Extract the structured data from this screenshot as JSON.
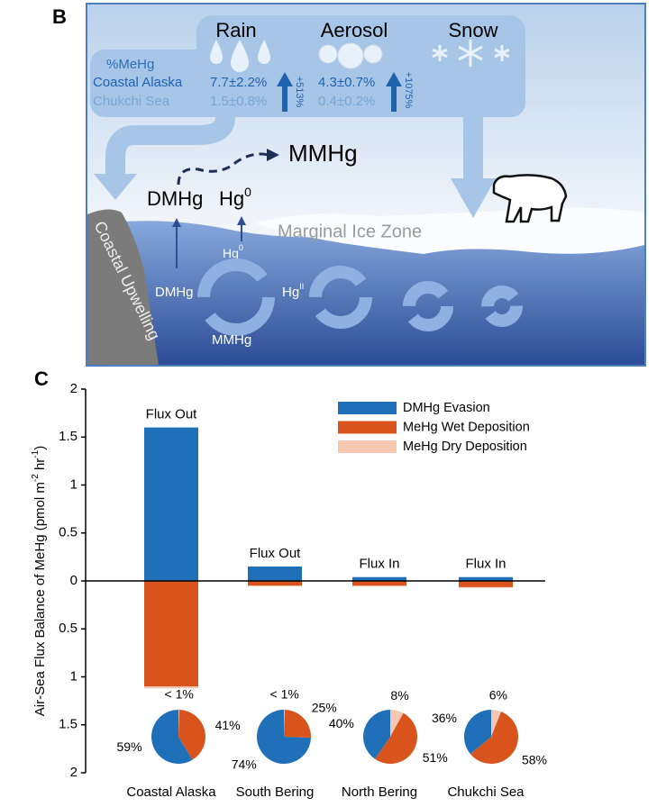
{
  "panel_b": {
    "label": "B",
    "precip": [
      "Rain",
      "Aerosol",
      "Snow"
    ],
    "mehg_title": "%MeHg",
    "regions": [
      "Coastal Alaska",
      "Chukchi Sea"
    ],
    "rain_values": [
      "7.7±2.2%",
      "1.5±0.8%"
    ],
    "rain_increase": "+513%",
    "aerosol_values": [
      "4.3±0.7%",
      "0.4±0.2%"
    ],
    "aerosol_increase": "+1075%",
    "mmhg_air": "MMHg",
    "dmhg_air": "DMHg",
    "hg0_air": {
      "base": "Hg",
      "sup": "0"
    },
    "ice_zone": "Marginal Ice Zone",
    "upwelling": "Coastal Upwelling",
    "hg0_water": {
      "base": "Hg",
      "sup": "0"
    },
    "dmhg_water": "DMHg",
    "hgii_water": {
      "base": "Hg",
      "sup": "II"
    },
    "mmhg_water": "MMHg"
  },
  "chart_data": {
    "type": "bar",
    "panel_label": "C",
    "ylabel": [
      "Air-Sea Flux Balance of MeHg (pmol m",
      "-2",
      " hr",
      "-1",
      ")"
    ],
    "categories": [
      "Coastal Alaska",
      "South Bering",
      "North Bering",
      "Chukchi Sea"
    ],
    "series": [
      {
        "name": "DMHg Evasion",
        "color": "#1f70b8",
        "values": [
          1.6,
          0.15,
          0.04,
          0.04
        ]
      },
      {
        "name": "MeHg Wet Deposition",
        "color": "#d9541d",
        "values": [
          -1.1,
          -0.05,
          -0.05,
          -0.065
        ]
      },
      {
        "name": "MeHg Dry Deposition",
        "color": "#f5c6b1",
        "values": [
          -0.02,
          -0.005,
          -0.008,
          -0.007
        ]
      }
    ],
    "annotations": [
      "Flux Out",
      "Flux Out",
      "Flux In",
      "Flux In"
    ],
    "pies": [
      {
        "values": [
          59,
          41,
          0.5
        ],
        "value_labels": [
          "59%",
          "41%",
          "< 1%"
        ]
      },
      {
        "values": [
          74,
          25,
          0.5
        ],
        "value_labels": [
          "74%",
          "25%",
          "< 1%"
        ]
      },
      {
        "values": [
          40,
          51,
          8
        ],
        "value_labels": [
          "40%",
          "51%",
          "8%"
        ]
      },
      {
        "values": [
          36,
          58,
          6
        ],
        "value_labels": [
          "36%",
          "58%",
          "6%"
        ]
      }
    ],
    "ylim": [
      -2,
      2
    ],
    "yticks": [
      {
        "value": -2,
        "label": "2"
      },
      {
        "value": -1.5,
        "label": "1.5"
      },
      {
        "value": -1,
        "label": "1"
      },
      {
        "value": -0.5,
        "label": "0.5"
      },
      0,
      0.5,
      1,
      1.5,
      2
    ],
    "legend": "upper right"
  }
}
